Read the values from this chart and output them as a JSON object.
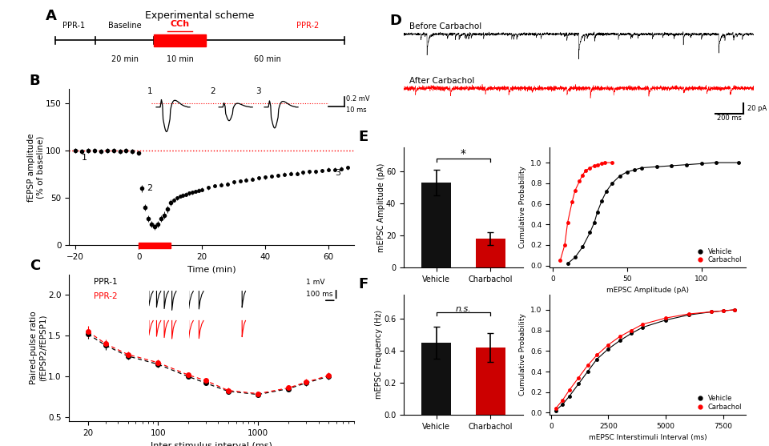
{
  "title_A": "Experimental scheme",
  "panel_B": {
    "baseline_x": [
      -20,
      -18,
      -16,
      -14,
      -12,
      -10,
      -8,
      -6,
      -4,
      -2,
      0
    ],
    "baseline_y": [
      100,
      99,
      100,
      100,
      99,
      100,
      100,
      99,
      100,
      99,
      98
    ],
    "drug_x": [
      1,
      2,
      3,
      4,
      5,
      6,
      7,
      8,
      9,
      10
    ],
    "drug_y": [
      60,
      40,
      28,
      22,
      20,
      22,
      28,
      32,
      38,
      45
    ],
    "recovery_x": [
      11,
      12,
      13,
      14,
      15,
      16,
      17,
      18,
      19,
      20,
      22,
      24,
      26,
      28,
      30,
      32,
      34,
      36,
      38,
      40,
      42,
      44,
      46,
      48,
      50,
      52,
      54,
      56,
      58,
      60,
      62,
      64,
      66
    ],
    "recovery_y": [
      48,
      50,
      52,
      53,
      54,
      55,
      56,
      57,
      58,
      59,
      61,
      63,
      64,
      65,
      67,
      68,
      69,
      70,
      71,
      72,
      73,
      74,
      75,
      76,
      76,
      77,
      78,
      78,
      79,
      80,
      80,
      81,
      82
    ],
    "yticks": [
      0,
      50,
      100,
      150
    ],
    "xticks": [
      -20,
      0,
      20,
      40,
      60
    ],
    "xlabel": "Time (min)",
    "ylabel": "fEPSP amplitude\n(% of baseline)",
    "scale_bar_mv": "0.2 mV",
    "scale_bar_ms": "10 ms"
  },
  "panel_C": {
    "x": [
      20,
      30,
      50,
      100,
      200,
      300,
      500,
      1000,
      2000,
      3000,
      5000
    ],
    "y_ppr1": [
      1.52,
      1.38,
      1.25,
      1.15,
      1.0,
      0.92,
      0.82,
      0.78,
      0.85,
      0.92,
      1.0
    ],
    "y_ppr2": [
      1.55,
      1.4,
      1.27,
      1.17,
      1.02,
      0.95,
      0.83,
      0.79,
      0.86,
      0.93,
      1.01
    ],
    "err1": [
      0.06,
      0.05,
      0.04,
      0.04,
      0.03,
      0.03,
      0.03,
      0.03,
      0.03,
      0.04,
      0.04
    ],
    "err2": [
      0.07,
      0.05,
      0.04,
      0.04,
      0.03,
      0.03,
      0.03,
      0.03,
      0.03,
      0.04,
      0.04
    ],
    "yticks": [
      0.5,
      1.0,
      1.5,
      2.0
    ],
    "xlabel": "Inter-stimulus interval (ms)",
    "ylabel": "Paired-pulse ratio\n(fEPSP2/fEPSP1)",
    "scale_bar_mv": "1 mV",
    "scale_bar_ms": "100 ms"
  },
  "panel_D": {
    "label_before": "Before Carbachol",
    "label_after": "After Carbachol",
    "scale_bar_pa": "20 pA",
    "scale_bar_ms": "200 ms"
  },
  "panel_E": {
    "categories": [
      "Vehicle",
      "Charbachol"
    ],
    "bar_values": [
      53,
      18
    ],
    "bar_errors": [
      8,
      4
    ],
    "bar_colors": [
      "#111111",
      "#cc0000"
    ],
    "ylabel": "mEPSC Amplitude (pA)",
    "yticks": [
      0,
      20,
      40,
      60
    ],
    "ylim": 75,
    "significance": "*",
    "cum_xlabel": "mEPSC Amplitude (pA)",
    "cum_ylabel": "Cumulative Probability",
    "cum_vehicle_x": [
      10,
      15,
      20,
      25,
      28,
      30,
      33,
      36,
      40,
      45,
      50,
      55,
      60,
      70,
      80,
      90,
      100,
      110,
      125
    ],
    "cum_vehicle_y": [
      0.02,
      0.08,
      0.18,
      0.32,
      0.42,
      0.52,
      0.63,
      0.72,
      0.8,
      0.87,
      0.91,
      0.93,
      0.95,
      0.96,
      0.97,
      0.98,
      0.99,
      1.0,
      1.0
    ],
    "cum_carbachol_x": [
      5,
      8,
      10,
      13,
      15,
      18,
      20,
      22,
      25,
      28,
      30,
      33,
      35,
      40
    ],
    "cum_carbachol_y": [
      0.05,
      0.2,
      0.42,
      0.62,
      0.73,
      0.82,
      0.88,
      0.92,
      0.95,
      0.97,
      0.98,
      0.99,
      1.0,
      1.0
    ],
    "cum_xticks": [
      0,
      50,
      100
    ],
    "cum_xlim": 130
  },
  "panel_F": {
    "categories": [
      "Vehicle",
      "Charbachol"
    ],
    "bar_values": [
      0.45,
      0.42
    ],
    "bar_errors": [
      0.1,
      0.09
    ],
    "bar_colors": [
      "#111111",
      "#cc0000"
    ],
    "ylabel": "mEPSC Frequency (Hz)",
    "yticks": [
      0,
      0.2,
      0.4,
      0.6
    ],
    "ylim": 0.75,
    "significance": "n.s.",
    "cum_xlabel": "mEPSC Interstimuli Interval (ms)",
    "cum_ylabel": "Cumulative Probability",
    "cum_vehicle_x": [
      200,
      500,
      800,
      1200,
      1600,
      2000,
      2500,
      3000,
      3500,
      4000,
      5000,
      6000,
      7000,
      7500,
      8000
    ],
    "cum_vehicle_y": [
      0.02,
      0.08,
      0.16,
      0.28,
      0.4,
      0.52,
      0.62,
      0.7,
      0.77,
      0.83,
      0.9,
      0.95,
      0.98,
      0.99,
      1.0
    ],
    "cum_carbachol_x": [
      200,
      500,
      800,
      1200,
      1600,
      2000,
      2500,
      3000,
      3500,
      4000,
      5000,
      6000,
      7000,
      7500,
      8000
    ],
    "cum_carbachol_y": [
      0.04,
      0.12,
      0.22,
      0.34,
      0.46,
      0.56,
      0.66,
      0.74,
      0.8,
      0.86,
      0.92,
      0.96,
      0.98,
      0.99,
      1.0
    ],
    "cum_xticks": [
      0,
      2500,
      5000,
      7500
    ],
    "cum_xlim": 8500
  },
  "colors": {
    "black": "#111111",
    "red": "#cc0000",
    "background": "#ffffff"
  }
}
